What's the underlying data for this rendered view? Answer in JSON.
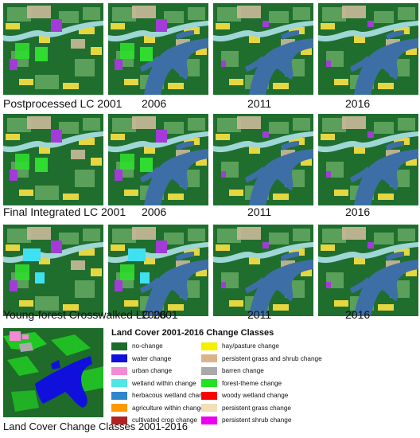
{
  "rows": [
    {
      "label": "Postprocessed LC 2001",
      "years": [
        "2006",
        "2011",
        "2016"
      ]
    },
    {
      "label": "Final Integrated LC 2001",
      "years": [
        "2006",
        "2011",
        "2016"
      ]
    },
    {
      "label": "Young-forest Crosswalked LC 2001",
      "years": [
        "2006",
        "2011",
        "2016"
      ]
    }
  ],
  "legend": {
    "title": "Land Cover 2001-2016 Change Classes",
    "items": [
      {
        "label": "no-change",
        "color": "#1e6b2a"
      },
      {
        "label": "water change",
        "color": "#1010dd"
      },
      {
        "label": "urban change",
        "color": "#f28ad6"
      },
      {
        "label": "wetland within change",
        "color": "#4fe6e6"
      },
      {
        "label": "herbacous wetland change",
        "color": "#2f86c8"
      },
      {
        "label": "agriculture within change",
        "color": "#ff9900"
      },
      {
        "label": "cultivated crop change",
        "color": "#b22222"
      },
      {
        "label": "hay/pasture change",
        "color": "#f5f000"
      },
      {
        "label": "persistent grass and shrub change",
        "color": "#d9b48a"
      },
      {
        "label": "barren change",
        "color": "#a9a9a9"
      },
      {
        "label": "forest-theme change",
        "color": "#22e022"
      },
      {
        "label": "woody wetland change",
        "color": "#ff0000"
      },
      {
        "label": "persistent grass change",
        "color": "#f0e0b8"
      },
      {
        "label": "persistent shrub change",
        "color": "#ee00ee"
      }
    ]
  },
  "caption": "Land Cover Change Classes 2001-2016",
  "colors": {
    "forest": "#1f6e2e",
    "lightforest": "#5aa05a",
    "water": "#3d6fa6",
    "river": "#9fd6d6",
    "hay": "#e6d640",
    "urban": "#c9b99a",
    "purple": "#a23bd8",
    "cyan": "#3fe0f0",
    "green": "#2fdc2f"
  }
}
